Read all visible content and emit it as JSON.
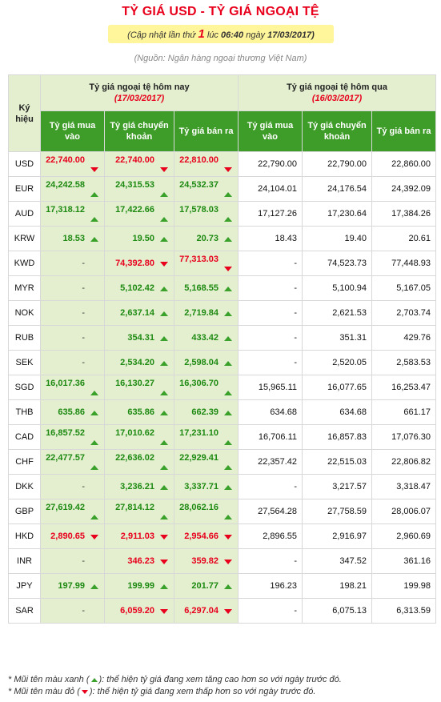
{
  "title": "TỶ GIÁ USD - TỶ GIÁ NGOẠI TỆ",
  "update": {
    "prefix": "(Cập nhật lần thứ",
    "count": "1",
    "middle": "lúc",
    "time": "06:40",
    "date_label": "ngày",
    "date": "17/03/2017)"
  },
  "source": "(Nguồn: Ngân hàng ngoại thương Việt Nam)",
  "table": {
    "symbol_header": "Ký hiệu",
    "today_header": "Tỷ giá ngoại tệ hôm nay",
    "today_date": "(17/03/2017)",
    "yesterday_header": "Tỷ giá ngoại tệ hôm qua",
    "yesterday_date": "(16/03/2017)",
    "col_buy": "Tỷ giá mua vào",
    "col_transfer": "Tỷ giá chuyển khoản",
    "col_sell": "Tỷ giá bán ra",
    "rows": [
      {
        "code": "USD",
        "buy": "22,740.00",
        "buy_dir": "down",
        "transfer": "22,740.00",
        "transfer_dir": "down",
        "sell": "22,810.00",
        "sell_dir": "down",
        "y_buy": "22,790.00",
        "y_transfer": "22,790.00",
        "y_sell": "22,860.00"
      },
      {
        "code": "EUR",
        "buy": "24,242.58",
        "buy_dir": "up",
        "transfer": "24,315.53",
        "transfer_dir": "up",
        "sell": "24,532.37",
        "sell_dir": "up",
        "y_buy": "24,104.01",
        "y_transfer": "24,176.54",
        "y_sell": "24,392.09"
      },
      {
        "code": "AUD",
        "buy": "17,318.12",
        "buy_dir": "up",
        "transfer": "17,422.66",
        "transfer_dir": "up",
        "sell": "17,578.03",
        "sell_dir": "up",
        "y_buy": "17,127.26",
        "y_transfer": "17,230.64",
        "y_sell": "17,384.26"
      },
      {
        "code": "KRW",
        "buy": "18.53",
        "buy_dir": "up",
        "transfer": "19.50",
        "transfer_dir": "up",
        "sell": "20.73",
        "sell_dir": "up",
        "y_buy": "18.43",
        "y_transfer": "19.40",
        "y_sell": "20.61"
      },
      {
        "code": "KWD",
        "buy": "-",
        "buy_dir": "",
        "transfer": "74,392.80",
        "transfer_dir": "down",
        "sell": "77,313.03",
        "sell_dir": "down",
        "y_buy": "-",
        "y_transfer": "74,523.73",
        "y_sell": "77,448.93"
      },
      {
        "code": "MYR",
        "buy": "-",
        "buy_dir": "",
        "transfer": "5,102.42",
        "transfer_dir": "up",
        "sell": "5,168.55",
        "sell_dir": "up",
        "y_buy": "-",
        "y_transfer": "5,100.94",
        "y_sell": "5,167.05"
      },
      {
        "code": "NOK",
        "buy": "-",
        "buy_dir": "",
        "transfer": "2,637.14",
        "transfer_dir": "up",
        "sell": "2,719.84",
        "sell_dir": "up",
        "y_buy": "-",
        "y_transfer": "2,621.53",
        "y_sell": "2,703.74"
      },
      {
        "code": "RUB",
        "buy": "-",
        "buy_dir": "",
        "transfer": "354.31",
        "transfer_dir": "up",
        "sell": "433.42",
        "sell_dir": "up",
        "y_buy": "-",
        "y_transfer": "351.31",
        "y_sell": "429.76"
      },
      {
        "code": "SEK",
        "buy": "-",
        "buy_dir": "",
        "transfer": "2,534.20",
        "transfer_dir": "up",
        "sell": "2,598.04",
        "sell_dir": "up",
        "y_buy": "-",
        "y_transfer": "2,520.05",
        "y_sell": "2,583.53"
      },
      {
        "code": "SGD",
        "buy": "16,017.36",
        "buy_dir": "up",
        "transfer": "16,130.27",
        "transfer_dir": "up",
        "sell": "16,306.70",
        "sell_dir": "up",
        "y_buy": "15,965.11",
        "y_transfer": "16,077.65",
        "y_sell": "16,253.47"
      },
      {
        "code": "THB",
        "buy": "635.86",
        "buy_dir": "up",
        "transfer": "635.86",
        "transfer_dir": "up",
        "sell": "662.39",
        "sell_dir": "up",
        "y_buy": "634.68",
        "y_transfer": "634.68",
        "y_sell": "661.17"
      },
      {
        "code": "CAD",
        "buy": "16,857.52",
        "buy_dir": "up",
        "transfer": "17,010.62",
        "transfer_dir": "up",
        "sell": "17,231.10",
        "sell_dir": "up",
        "y_buy": "16,706.11",
        "y_transfer": "16,857.83",
        "y_sell": "17,076.30"
      },
      {
        "code": "CHF",
        "buy": "22,477.57",
        "buy_dir": "up",
        "transfer": "22,636.02",
        "transfer_dir": "up",
        "sell": "22,929.41",
        "sell_dir": "up",
        "y_buy": "22,357.42",
        "y_transfer": "22,515.03",
        "y_sell": "22,806.82"
      },
      {
        "code": "DKK",
        "buy": "-",
        "buy_dir": "",
        "transfer": "3,236.21",
        "transfer_dir": "up",
        "sell": "3,337.71",
        "sell_dir": "up",
        "y_buy": "-",
        "y_transfer": "3,217.57",
        "y_sell": "3,318.47"
      },
      {
        "code": "GBP",
        "buy": "27,619.42",
        "buy_dir": "up",
        "transfer": "27,814.12",
        "transfer_dir": "up",
        "sell": "28,062.16",
        "sell_dir": "up",
        "y_buy": "27,564.28",
        "y_transfer": "27,758.59",
        "y_sell": "28,006.07"
      },
      {
        "code": "HKD",
        "buy": "2,890.65",
        "buy_dir": "down",
        "transfer": "2,911.03",
        "transfer_dir": "down",
        "sell": "2,954.66",
        "sell_dir": "down",
        "y_buy": "2,896.55",
        "y_transfer": "2,916.97",
        "y_sell": "2,960.69"
      },
      {
        "code": "INR",
        "buy": "-",
        "buy_dir": "",
        "transfer": "346.23",
        "transfer_dir": "down",
        "sell": "359.82",
        "sell_dir": "down",
        "y_buy": "-",
        "y_transfer": "347.52",
        "y_sell": "361.16"
      },
      {
        "code": "JPY",
        "buy": "197.99",
        "buy_dir": "up",
        "transfer": "199.99",
        "transfer_dir": "up",
        "sell": "201.77",
        "sell_dir": "up",
        "y_buy": "196.23",
        "y_transfer": "198.21",
        "y_sell": "199.98"
      },
      {
        "code": "SAR",
        "buy": "-",
        "buy_dir": "",
        "transfer": "6,059.20",
        "transfer_dir": "down",
        "sell": "6,297.04",
        "sell_dir": "down",
        "y_buy": "-",
        "y_transfer": "6,075.13",
        "y_sell": "6,313.59"
      }
    ]
  },
  "notes": {
    "green_prefix": "* Mũi tên màu xanh (",
    "green_suffix": "): thể hiện tỷ giá đang xem tăng cao hơn so với ngày trước đó.",
    "red_prefix": "* Mũi tên màu đỏ (",
    "red_suffix": "): thể hiện tỷ giá đang xem thấp hơn so với ngày trước đó."
  },
  "colors": {
    "title_red": "#e8001c",
    "header_green": "#3e9c28",
    "today_bg": "#e3efcf",
    "up_green": "#1e8a12",
    "update_yellow": "#fff59a"
  }
}
